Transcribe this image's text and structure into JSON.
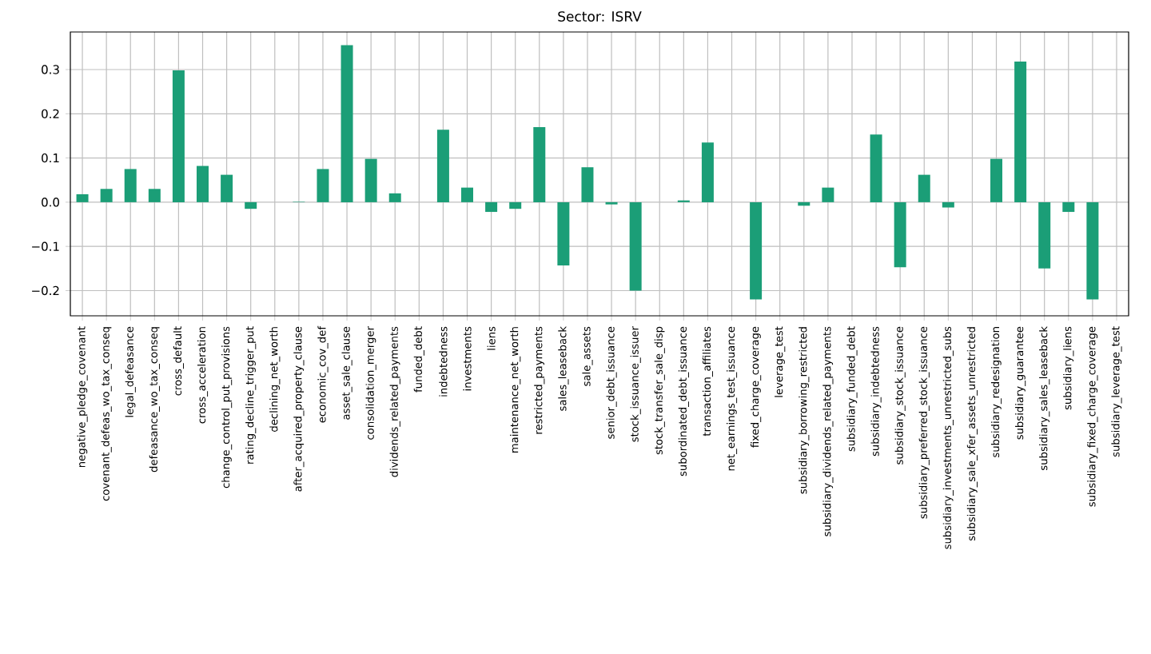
{
  "chart_data": {
    "type": "bar",
    "title": "Sector: ISRV",
    "categories": [
      "negative_pledge_covenant",
      "covenant_defeas_wo_tax_conseq",
      "legal_defeasance",
      "defeasance_wo_tax_conseq",
      "cross_default",
      "cross_acceleration",
      "change_control_put_provisions",
      "rating_decline_trigger_put",
      "declining_net_worth",
      "after_acquired_property_clause",
      "economic_cov_def",
      "asset_sale_clause",
      "consolidation_merger",
      "dividends_related_payments",
      "funded_debt",
      "indebtedness",
      "investments",
      "liens",
      "maintenance_net_worth",
      "restricted_payments",
      "sales_leaseback",
      "sale_assets",
      "senior_debt_issuance",
      "stock_issuance_issuer",
      "stock_transfer_sale_disp",
      "subordinated_debt_issuance",
      "transaction_affiliates",
      "net_earnings_test_issuance",
      "fixed_charge_coverage",
      "leverage_test",
      "subsidiary_borrowing_restricted",
      "subsidiary_dividends_related_payments",
      "subsidiary_funded_debt",
      "subsidiary_indebtedness",
      "subsidiary_stock_issuance",
      "subsidiary_preferred_stock_issuance",
      "subsidiary_investments_unrestricted_subs",
      "subsidiary_sale_xfer_assets_unrestricted",
      "subsidiary_redesignation",
      "subsidiary_guarantee",
      "subsidiary_sales_leaseback",
      "subsidiary_liens",
      "subsidiary_fixed_charge_coverage",
      "subsidiary_leverage_test"
    ],
    "values": [
      0.018,
      0.03,
      0.075,
      0.03,
      0.298,
      0.082,
      0.062,
      -0.015,
      0,
      0.001,
      0.075,
      0.355,
      0.098,
      0.02,
      0,
      0.164,
      0.033,
      -0.022,
      -0.015,
      0.17,
      -0.143,
      0.079,
      -0.005,
      -0.2,
      0,
      0.004,
      0.135,
      0,
      -0.22,
      0,
      -0.008,
      0.033,
      0,
      0.153,
      -0.147,
      0.062,
      -0.012,
      0,
      0.098,
      0.318,
      -0.15,
      -0.022,
      -0.22,
      0
    ],
    "color": "#1b9e77",
    "ylim": [
      -0.257,
      0.385
    ],
    "yticks": [
      {
        "value": -0.2,
        "label": "−0.2"
      },
      {
        "value": -0.1,
        "label": "−0.1"
      },
      {
        "value": 0.0,
        "label": "0.0"
      },
      {
        "value": 0.1,
        "label": "0.1"
      },
      {
        "value": 0.2,
        "label": "0.2"
      },
      {
        "value": 0.3,
        "label": "0.3"
      }
    ],
    "grid": true
  }
}
